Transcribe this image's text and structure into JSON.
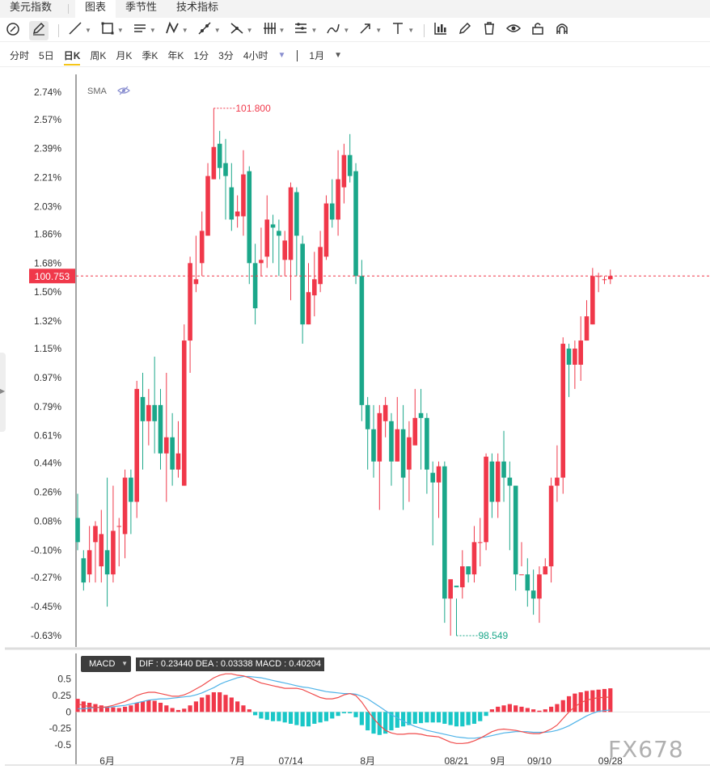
{
  "tabs": [
    "美元指数",
    "图表",
    "季节性",
    "技术指标"
  ],
  "active_tab": 1,
  "toolbar": [
    {
      "name": "cursor-mode-icon",
      "caret": false
    },
    {
      "name": "pencil-draw-icon",
      "caret": false,
      "boxed": true
    },
    {
      "name": "trend-line-icon",
      "caret": true
    },
    {
      "name": "rectangle-icon",
      "caret": true
    },
    {
      "name": "parallel-lines-icon",
      "caret": true
    },
    {
      "name": "pattern-icon",
      "caret": true
    },
    {
      "name": "ray-line-icon",
      "caret": true
    },
    {
      "name": "cross-line-icon",
      "caret": true
    },
    {
      "name": "fibonacci-icon",
      "caret": true
    },
    {
      "name": "gann-icon",
      "caret": true
    },
    {
      "name": "brush-icon",
      "caret": true
    },
    {
      "name": "arrow-icon",
      "caret": true
    },
    {
      "name": "text-tool-icon",
      "caret": true
    },
    {
      "name": "indicator-icon",
      "caret": false
    },
    {
      "name": "edit-icon",
      "caret": false
    },
    {
      "name": "trash-icon",
      "caret": false
    },
    {
      "name": "eye-icon",
      "caret": false
    },
    {
      "name": "lock-icon",
      "caret": false
    },
    {
      "name": "magnet-icon",
      "caret": false
    }
  ],
  "periods": [
    "分时",
    "5日",
    "日K",
    "周K",
    "月K",
    "季K",
    "年K",
    "1分",
    "3分",
    "4小时"
  ],
  "active_period": 2,
  "range_label": "1月",
  "sma_label": "SMA",
  "macd": {
    "label": "MACD",
    "values_text": "DIF : 0.23440   DEA : 0.03338   MACD : 0.40204"
  },
  "watermark": "FX678",
  "colors": {
    "up": "#f0384a",
    "down": "#1ba78a",
    "dif": "#f04b4b",
    "dea": "#4fb3e8",
    "macd_up": "#f0384a",
    "macd_down": "#19c7c7"
  },
  "chart_data": [
    {
      "type": "candlestick",
      "y_tick_labels": [
        "2.74%",
        "2.57%",
        "2.39%",
        "2.21%",
        "2.03%",
        "1.86%",
        "1.68%",
        "1.50%",
        "1.32%",
        "1.15%",
        "0.97%",
        "0.79%",
        "0.61%",
        "0.44%",
        "0.26%",
        "0.08%",
        "-0.10%",
        "-0.27%",
        "-0.45%",
        "-0.63%"
      ],
      "x_tick_labels": [
        {
          "label": "6月",
          "index": 5
        },
        {
          "label": "7月",
          "index": 27
        },
        {
          "label": "07/14",
          "index": 36
        },
        {
          "label": "8月",
          "index": 49
        },
        {
          "label": "08/21",
          "index": 64
        },
        {
          "label": "9月",
          "index": 71
        },
        {
          "label": "09/10",
          "index": 78
        },
        {
          "label": "09/28",
          "index": 90
        }
      ],
      "current_price": 100.753,
      "max_label": {
        "value": 101.8,
        "text": "101.800",
        "index": 23
      },
      "min_label": {
        "value": 98.549,
        "text": "98.549",
        "index": 64
      },
      "series": [
        {
          "name": "美元指数",
          "candles": [
            [
              0.1,
              -0.05,
              0.25,
              -0.1
            ],
            [
              -0.15,
              -0.3,
              -0.1,
              -0.35
            ],
            [
              -0.25,
              -0.1,
              0.05,
              -0.3
            ],
            [
              -0.05,
              0.05,
              0.08,
              -0.3
            ],
            [
              -0.2,
              0.0,
              0.15,
              -0.3
            ],
            [
              -0.1,
              -0.25,
              0.35,
              -0.45
            ],
            [
              -0.25,
              0.02,
              0.3,
              -0.3
            ],
            [
              0.05,
              0.05,
              0.1,
              -0.2
            ],
            [
              0.0,
              0.35,
              0.4,
              -0.15
            ],
            [
              0.35,
              0.2,
              0.4,
              0.0
            ],
            [
              0.2,
              0.9,
              0.95,
              0.1
            ],
            [
              0.85,
              0.7,
              1.0,
              0.4
            ],
            [
              0.7,
              0.8,
              0.9,
              0.55
            ],
            [
              0.8,
              0.7,
              1.1,
              0.5
            ],
            [
              0.8,
              0.5,
              0.9,
              0.4
            ],
            [
              0.5,
              0.6,
              1.0,
              0.2
            ],
            [
              0.6,
              0.4,
              0.75,
              0.3
            ],
            [
              0.4,
              0.5,
              0.7,
              0.35
            ],
            [
              0.3,
              1.2,
              1.3,
              0.3
            ],
            [
              1.2,
              1.68,
              1.72,
              1.0
            ],
            [
              1.55,
              1.58,
              1.85,
              1.5
            ],
            [
              1.68,
              1.88,
              2.0,
              1.6
            ],
            [
              1.85,
              2.22,
              2.3,
              1.85
            ],
            [
              2.2,
              2.4,
              2.64,
              2.2
            ],
            [
              2.42,
              2.27,
              2.5,
              2.2
            ],
            [
              2.3,
              2.22,
              2.45,
              1.95
            ],
            [
              2.15,
              1.95,
              2.3,
              1.88
            ],
            [
              1.97,
              2.0,
              2.1,
              1.9
            ],
            [
              1.97,
              2.23,
              2.38,
              1.85
            ],
            [
              2.25,
              1.68,
              2.28,
              1.55
            ],
            [
              1.68,
              1.4,
              1.8,
              1.3
            ],
            [
              1.68,
              1.7,
              1.9,
              1.6
            ],
            [
              1.72,
              1.95,
              2.1,
              1.65
            ],
            [
              1.92,
              1.9,
              1.98,
              1.68
            ],
            [
              1.88,
              1.85,
              1.95,
              1.6
            ],
            [
              1.7,
              1.82,
              1.88,
              1.6
            ],
            [
              1.7,
              2.15,
              2.18,
              1.45
            ],
            [
              2.12,
              1.85,
              2.15,
              1.6
            ],
            [
              1.8,
              1.3,
              1.85,
              1.18
            ],
            [
              1.3,
              1.5,
              1.68,
              1.3
            ],
            [
              1.48,
              1.58,
              1.75,
              1.35
            ],
            [
              1.55,
              1.78,
              1.88,
              1.5
            ],
            [
              1.72,
              2.05,
              2.1,
              1.7
            ],
            [
              2.05,
              1.95,
              2.2,
              1.9
            ],
            [
              1.95,
              2.2,
              2.38,
              1.85
            ],
            [
              2.15,
              2.35,
              2.42,
              2.05
            ],
            [
              2.35,
              2.22,
              2.48,
              2.18
            ],
            [
              2.25,
              1.6,
              2.3,
              1.55
            ],
            [
              1.6,
              0.8,
              1.7,
              0.7
            ],
            [
              0.8,
              0.65,
              0.85,
              0.4
            ],
            [
              0.65,
              0.45,
              0.8,
              0.35
            ],
            [
              0.45,
              0.75,
              0.8,
              0.15
            ],
            [
              0.7,
              0.8,
              0.85,
              0.6
            ],
            [
              0.7,
              0.45,
              0.75,
              0.3
            ],
            [
              0.45,
              0.65,
              0.85,
              0.45
            ],
            [
              0.65,
              0.35,
              0.8,
              0.15
            ],
            [
              0.4,
              0.6,
              0.7,
              0.2
            ],
            [
              0.55,
              0.72,
              0.9,
              0.55
            ],
            [
              0.75,
              0.72,
              0.9,
              0.4
            ],
            [
              0.72,
              0.4,
              0.75,
              0.25
            ],
            [
              0.38,
              0.32,
              0.45,
              -0.07
            ],
            [
              0.32,
              0.42,
              0.45,
              0.1
            ],
            [
              0.42,
              -0.4,
              0.45,
              -0.55
            ],
            [
              -0.4,
              -0.28,
              -0.32,
              -0.63
            ],
            [
              -0.32,
              -0.33,
              -0.4,
              -0.63
            ],
            [
              -0.33,
              -0.2,
              -0.1,
              -0.4
            ],
            [
              -0.2,
              -0.25,
              -0.2,
              -0.3
            ],
            [
              -0.25,
              -0.05,
              0.05,
              -0.3
            ],
            [
              -0.05,
              -0.05,
              0.1,
              -0.2
            ],
            [
              -0.05,
              0.48,
              0.5,
              -0.1
            ],
            [
              0.45,
              0.2,
              0.5,
              0.1
            ],
            [
              0.2,
              0.45,
              0.5,
              0.1
            ],
            [
              0.45,
              0.35,
              0.64,
              0.2
            ],
            [
              0.35,
              0.3,
              0.45,
              -0.1
            ],
            [
              0.3,
              -0.25,
              0.3,
              -0.35
            ],
            [
              -0.25,
              -0.25,
              -0.05,
              -0.2
            ],
            [
              -0.25,
              -0.35,
              -0.15,
              -0.45
            ],
            [
              -0.35,
              -0.4,
              -0.22,
              -0.5
            ],
            [
              -0.4,
              -0.25,
              -0.2,
              -0.55
            ],
            [
              -0.25,
              -0.2,
              -0.15,
              -0.25
            ],
            [
              -0.2,
              0.3,
              0.35,
              -0.3
            ],
            [
              0.3,
              0.35,
              0.55,
              0.2
            ],
            [
              0.35,
              1.18,
              1.22,
              0.25
            ],
            [
              1.15,
              1.05,
              1.18,
              0.85
            ],
            [
              1.05,
              1.15,
              1.2,
              0.9
            ],
            [
              1.05,
              1.2,
              1.35,
              0.95
            ],
            [
              1.2,
              1.35,
              1.45,
              1.2
            ],
            [
              1.3,
              1.6,
              1.65,
              1.3
            ],
            [
              1.6,
              1.6,
              1.62,
              1.5
            ],
            [
              1.58,
              1.58,
              1.6,
              1.55
            ],
            [
              1.58,
              1.6,
              1.64,
              1.55
            ]
          ]
        }
      ],
      "ylim": [
        -0.7,
        2.85
      ]
    },
    {
      "type": "bar+line",
      "y_tick_labels": [
        "0.5",
        "0.25",
        "0",
        "-0.25",
        "-0.5"
      ],
      "ylim": [
        -0.55,
        0.62
      ],
      "series": [
        {
          "name": "MACD",
          "values": [
            0.2,
            0.16,
            0.14,
            0.12,
            0.1,
            0.08,
            0.07,
            0.06,
            0.08,
            0.1,
            0.14,
            0.16,
            0.18,
            0.17,
            0.14,
            0.1,
            0.06,
            0.03,
            0.05,
            0.1,
            0.16,
            0.22,
            0.26,
            0.3,
            0.3,
            0.26,
            0.22,
            0.16,
            0.1,
            0.04,
            -0.05,
            -0.1,
            -0.12,
            -0.14,
            -0.14,
            -0.16,
            -0.18,
            -0.2,
            -0.22,
            -0.22,
            -0.18,
            -0.16,
            -0.14,
            -0.1,
            -0.06,
            -0.02,
            -0.02,
            -0.08,
            -0.2,
            -0.28,
            -0.33,
            -0.35,
            -0.33,
            -0.28,
            -0.24,
            -0.22,
            -0.2,
            -0.18,
            -0.17,
            -0.16,
            -0.16,
            -0.16,
            -0.18,
            -0.2,
            -0.22,
            -0.22,
            -0.2,
            -0.18,
            -0.14,
            -0.06,
            0.04,
            0.08,
            0.1,
            0.12,
            0.1,
            0.08,
            0.06,
            0.04,
            0.02,
            0.04,
            0.08,
            0.12,
            0.18,
            0.24,
            0.28,
            0.3,
            0.32,
            0.33,
            0.34,
            0.35,
            0.36
          ]
        },
        {
          "name": "DIF",
          "values": [
            0.12,
            0.1,
            0.08,
            0.07,
            0.07,
            0.08,
            0.1,
            0.13,
            0.16,
            0.2,
            0.25,
            0.28,
            0.3,
            0.3,
            0.28,
            0.26,
            0.24,
            0.24,
            0.26,
            0.3,
            0.35,
            0.4,
            0.46,
            0.52,
            0.56,
            0.58,
            0.58,
            0.56,
            0.55,
            0.52,
            0.48,
            0.44,
            0.42,
            0.4,
            0.38,
            0.36,
            0.36,
            0.36,
            0.34,
            0.3,
            0.26,
            0.22,
            0.2,
            0.2,
            0.22,
            0.26,
            0.28,
            0.25,
            0.15,
            0.02,
            -0.1,
            -0.2,
            -0.28,
            -0.32,
            -0.34,
            -0.34,
            -0.33,
            -0.33,
            -0.34,
            -0.36,
            -0.37,
            -0.38,
            -0.42,
            -0.46,
            -0.48,
            -0.48,
            -0.47,
            -0.44,
            -0.4,
            -0.35,
            -0.3,
            -0.27,
            -0.26,
            -0.27,
            -0.28,
            -0.3,
            -0.32,
            -0.33,
            -0.33,
            -0.3,
            -0.26,
            -0.2,
            -0.1,
            0.0,
            0.08,
            0.14,
            0.18,
            0.2,
            0.22,
            0.22,
            0.23
          ]
        },
        {
          "name": "DEA",
          "values": [
            0.05,
            0.05,
            0.06,
            0.07,
            0.07,
            0.07,
            0.08,
            0.09,
            0.1,
            0.12,
            0.14,
            0.16,
            0.18,
            0.19,
            0.2,
            0.2,
            0.21,
            0.22,
            0.23,
            0.24,
            0.26,
            0.29,
            0.33,
            0.37,
            0.42,
            0.46,
            0.49,
            0.52,
            0.54,
            0.54,
            0.53,
            0.52,
            0.5,
            0.48,
            0.46,
            0.44,
            0.42,
            0.4,
            0.38,
            0.37,
            0.35,
            0.33,
            0.31,
            0.3,
            0.29,
            0.28,
            0.28,
            0.27,
            0.24,
            0.2,
            0.14,
            0.08,
            0.02,
            -0.04,
            -0.09,
            -0.14,
            -0.18,
            -0.22,
            -0.25,
            -0.28,
            -0.3,
            -0.32,
            -0.34,
            -0.36,
            -0.38,
            -0.39,
            -0.4,
            -0.4,
            -0.39,
            -0.38,
            -0.36,
            -0.34,
            -0.32,
            -0.31,
            -0.3,
            -0.3,
            -0.3,
            -0.31,
            -0.31,
            -0.31,
            -0.3,
            -0.28,
            -0.25,
            -0.21,
            -0.16,
            -0.11,
            -0.06,
            -0.02,
            0.01,
            0.02,
            0.03
          ]
        }
      ]
    }
  ]
}
